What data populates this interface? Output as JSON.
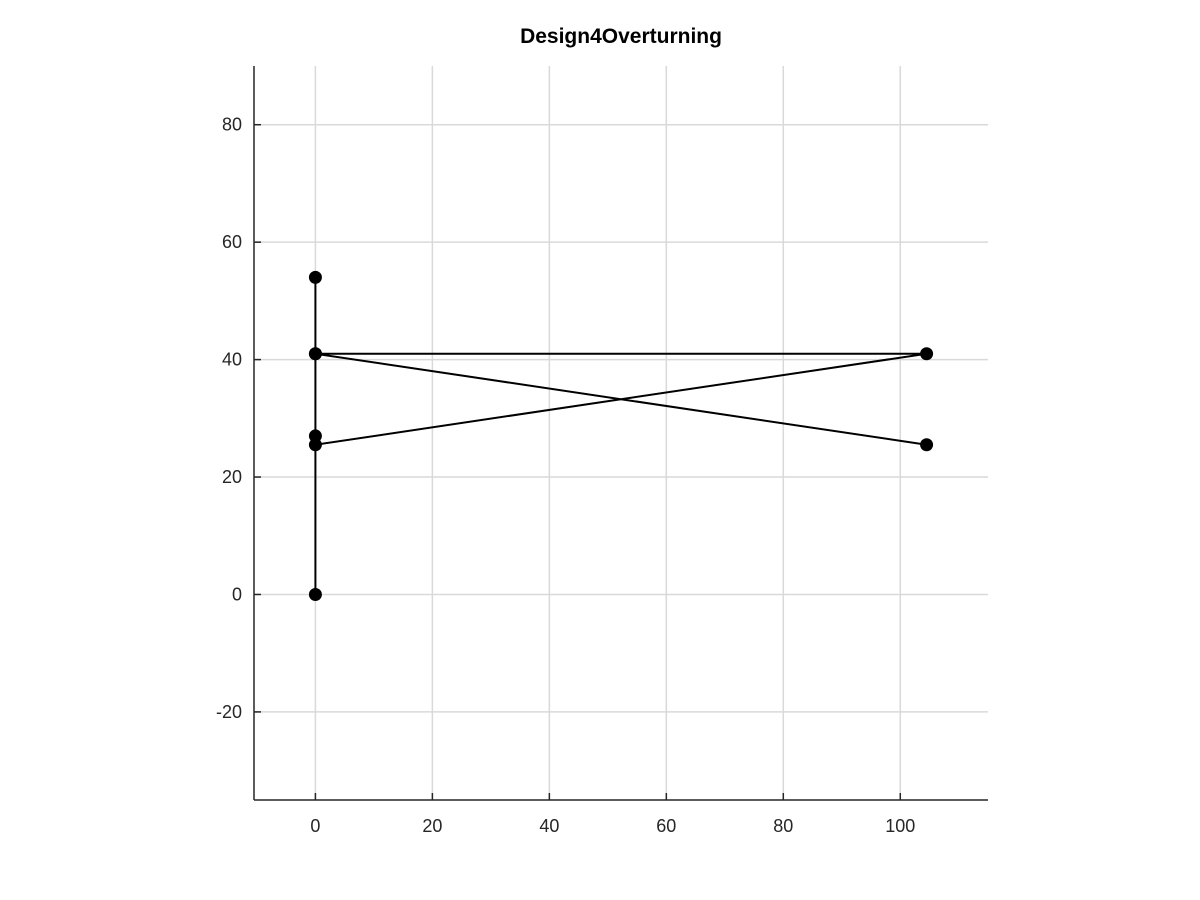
{
  "chart_data": {
    "type": "line",
    "title": "Design4Overturning",
    "xlabel": "",
    "ylabel": "",
    "xlim": [
      -10.5,
      115
    ],
    "ylim": [
      -35,
      90
    ],
    "xticks": [
      0,
      20,
      40,
      60,
      80,
      100
    ],
    "yticks": [
      -20,
      0,
      20,
      40,
      60,
      80
    ],
    "grid": true,
    "legend": "none",
    "colors": {
      "line": "#000000",
      "marker": "#000000",
      "grid": "#d9d9d9",
      "axis": "#262626"
    },
    "series": [
      {
        "points": [
          {
            "x": 0,
            "y": 0
          },
          {
            "x": 0,
            "y": 54
          },
          {
            "x": 0,
            "y": 41
          },
          {
            "x": 104.5,
            "y": 41
          },
          {
            "x": 0,
            "y": 25.5
          },
          {
            "x": 0,
            "y": 27
          },
          {
            "x": 0,
            "y": 41
          },
          {
            "x": 104.5,
            "y": 25.5
          }
        ]
      }
    ]
  }
}
